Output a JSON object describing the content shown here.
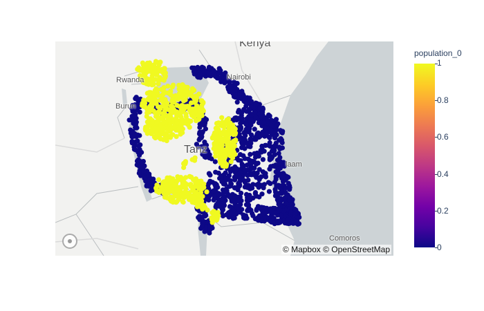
{
  "map": {
    "attribution": "© Mapbox © OpenStreetMap",
    "country_labels": [
      "Kenya",
      "Tanz"
    ],
    "city_labels": [
      "Nairobi",
      "Rwanda",
      "Burun",
      "laam",
      "Comoros"
    ],
    "colors": {
      "water": "#cdd3d6",
      "land": "#f2f2f0",
      "yellow": "#f0f921",
      "navy": "#0d0887"
    }
  },
  "colorbar": {
    "title": "population_0",
    "ticks": [
      "1",
      "0.8",
      "0.6",
      "0.4",
      "0.2",
      "0"
    ],
    "min": 0,
    "max": 1,
    "colorscale": "plasma"
  },
  "chart_data": {
    "type": "scatter",
    "color_field": "population_0",
    "categories": [
      0,
      1
    ],
    "colors": {
      "0": "#0d0887",
      "1": "#f0f921"
    }
  }
}
